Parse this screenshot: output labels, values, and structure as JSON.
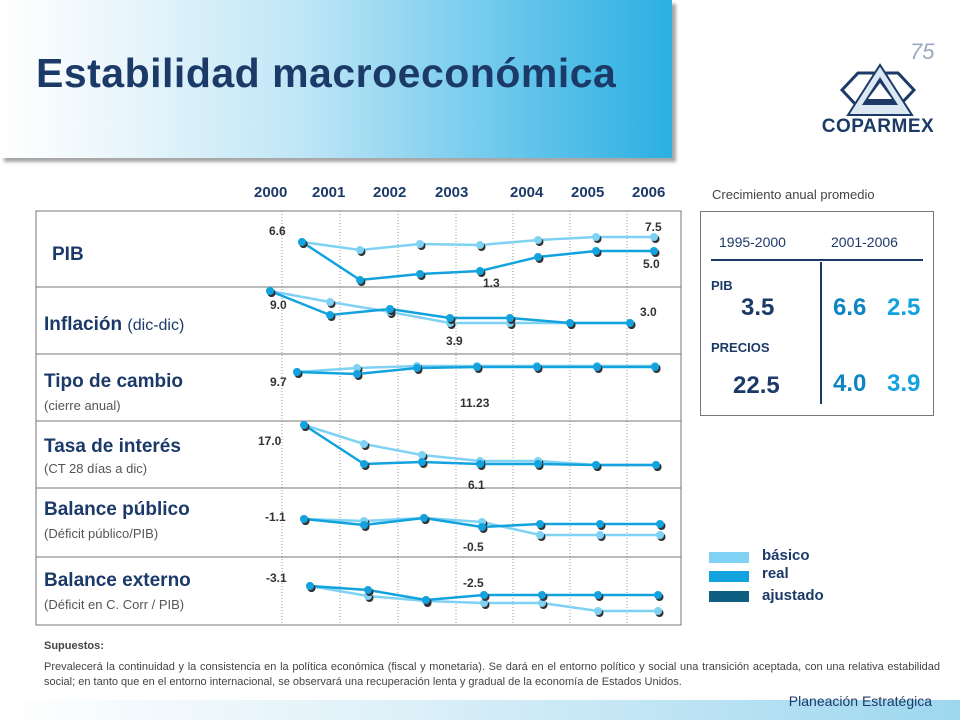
{
  "slide": {
    "title": "Estabilidad macroeconómica",
    "logo_text": "COPARMEX",
    "logo_anniversary": "75",
    "years": [
      "2000",
      "2001",
      "2002",
      "2003",
      "2004",
      "2005",
      "2006"
    ],
    "summary_caption": "Crecimiento anual promedio"
  },
  "rows": [
    {
      "label": "PIB",
      "sub": "",
      "values": [
        "6.6",
        "7.5",
        "5.0",
        "1.3"
      ]
    },
    {
      "label": "Inflación",
      "label_paren": "(dic-dic)",
      "sub": "",
      "values": [
        "9.0",
        "3.0",
        "3.9"
      ]
    },
    {
      "label": "Tipo de cambio",
      "sub": "(cierre anual)",
      "values": [
        "9.7",
        "11.23"
      ]
    },
    {
      "label": "Tasa de interés",
      "sub": "(CT 28 días a dic)",
      "values": [
        "17.0",
        "6.1"
      ]
    },
    {
      "label": "Balance público",
      "sub": "(Déficit público/PIB)",
      "values": [
        "-1.1",
        "-0.5"
      ]
    },
    {
      "label": "Balance externo",
      "sub": "(Déficit en C. Corr / PIB)",
      "values": [
        "-3.1",
        "-2.5"
      ]
    }
  ],
  "summary": {
    "period1": "1995-2000",
    "period2": "2001-2006",
    "pib_label": "PIB",
    "precios_label": "PRECIOS",
    "pib_1": "3.5",
    "pib_2a": "6.6",
    "pib_2b": "2.5",
    "precios_1": "22.5",
    "precios_2a": "4.0",
    "precios_2b": "3.9"
  },
  "legend": [
    {
      "label": "básico",
      "color": "#7fd2f3"
    },
    {
      "label": "real",
      "color": "#12a2de"
    },
    {
      "label": "ajustado",
      "color": "#0e5f82"
    }
  ],
  "footer": {
    "supuestos_title": "Supuestos:",
    "supuestos_text": "Prevalecerá la continuidad y la consistencia en la política económica (fiscal y monetaria). Se dará en el entorno político y social una transición aceptada, con una relativa estabilidad social; en tanto que en el entorno internacional, se observará una recuperación lenta y gradual de la economía de Estados Unidos.",
    "department": "Planeación Estratégica"
  },
  "colors": {
    "navy": "#1c3a68",
    "light": "#7fd2f3",
    "mid": "#12a2de",
    "dark": "#0e5f82"
  }
}
